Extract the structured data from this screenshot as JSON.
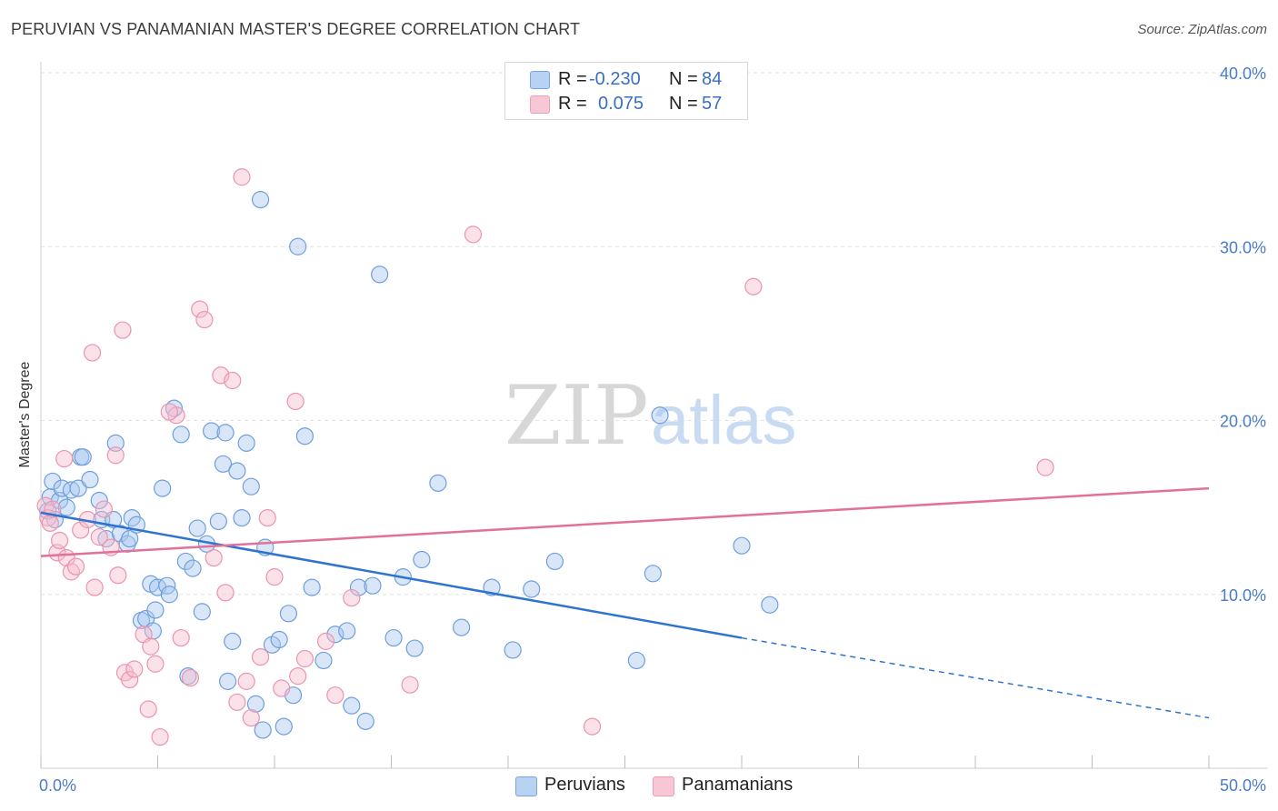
{
  "title": "PERUVIAN VS PANAMANIAN MASTER'S DEGREE CORRELATION CHART",
  "source": "Source: ZipAtlas.com",
  "watermark": {
    "zip": "ZIP",
    "atlas": "atlas"
  },
  "legend": {
    "rows": [
      {
        "r_label": "R =",
        "r_value": "-0.230",
        "n_label": "N =",
        "n_value": "84"
      },
      {
        "r_label": "R =",
        "r_value": "0.075",
        "n_label": "N =",
        "n_value": "57"
      }
    ]
  },
  "bottom_legend": {
    "series1": "Peruvians",
    "series2": "Panamanians"
  },
  "colors": {
    "peruvian_fill": "#a9c8f0",
    "peruvian_stroke": "#6f9fdc",
    "peruvian_line": "#2f73d0",
    "panamanian_fill": "#f6bccd",
    "panamanian_stroke": "#eb94b0",
    "panamanian_line": "#e2709a",
    "grid": "#e3e3e3",
    "tick_label": "#4a7cc8"
  },
  "chart_data": {
    "type": "scatter",
    "title": "PERUVIAN VS PANAMANIAN MASTER'S DEGREE CORRELATION CHART",
    "xlabel": "",
    "ylabel": "Master's Degree",
    "xlim": [
      0,
      50
    ],
    "ylim": [
      0,
      40
    ],
    "x_tick_labels": [
      "0.0%",
      "50.0%"
    ],
    "y_ticks": [
      10,
      20,
      30,
      40
    ],
    "y_tick_labels": [
      "10.0%",
      "20.0%",
      "30.0%",
      "40.0%"
    ],
    "series": [
      {
        "name": "Peruvians",
        "r": -0.23,
        "n": 84,
        "trend": {
          "x0": 0,
          "y0": 14.7,
          "x1": 30,
          "y1": 7.5,
          "dash_to_x": 50,
          "dash_to_y": 2.9
        },
        "points": [
          [
            0.3,
            14.8
          ],
          [
            0.4,
            15.6
          ],
          [
            0.5,
            16.5
          ],
          [
            0.6,
            14.3
          ],
          [
            0.8,
            15.4
          ],
          [
            0.9,
            16.1
          ],
          [
            1.1,
            15.0
          ],
          [
            1.3,
            16.0
          ],
          [
            1.6,
            16.1
          ],
          [
            1.7,
            17.9
          ],
          [
            1.8,
            17.9
          ],
          [
            2.1,
            16.6
          ],
          [
            2.5,
            15.4
          ],
          [
            2.6,
            14.3
          ],
          [
            2.8,
            13.2
          ],
          [
            3.1,
            14.3
          ],
          [
            3.2,
            18.7
          ],
          [
            3.4,
            13.5
          ],
          [
            3.7,
            12.9
          ],
          [
            3.8,
            13.2
          ],
          [
            3.9,
            14.4
          ],
          [
            4.1,
            14.0
          ],
          [
            4.3,
            8.5
          ],
          [
            4.5,
            8.6
          ],
          [
            4.7,
            10.6
          ],
          [
            4.8,
            7.9
          ],
          [
            5.0,
            10.4
          ],
          [
            5.2,
            16.1
          ],
          [
            5.4,
            10.5
          ],
          [
            5.5,
            10.0
          ],
          [
            5.7,
            20.7
          ],
          [
            6.0,
            19.2
          ],
          [
            6.2,
            11.9
          ],
          [
            6.5,
            11.5
          ],
          [
            6.7,
            13.8
          ],
          [
            6.9,
            9.0
          ],
          [
            7.1,
            12.9
          ],
          [
            7.3,
            19.4
          ],
          [
            7.6,
            14.2
          ],
          [
            7.8,
            17.5
          ],
          [
            7.9,
            19.3
          ],
          [
            8.2,
            7.3
          ],
          [
            8.4,
            17.1
          ],
          [
            8.6,
            14.4
          ],
          [
            8.8,
            18.7
          ],
          [
            9.0,
            16.2
          ],
          [
            9.2,
            3.7
          ],
          [
            9.4,
            32.7
          ],
          [
            9.6,
            12.7
          ],
          [
            9.9,
            7.1
          ],
          [
            10.2,
            7.4
          ],
          [
            10.4,
            2.4
          ],
          [
            10.6,
            8.9
          ],
          [
            10.8,
            4.2
          ],
          [
            11.0,
            30.0
          ],
          [
            11.3,
            19.1
          ],
          [
            11.6,
            10.4
          ],
          [
            12.1,
            6.2
          ],
          [
            12.6,
            7.7
          ],
          [
            13.1,
            7.9
          ],
          [
            13.3,
            3.6
          ],
          [
            13.6,
            10.4
          ],
          [
            13.9,
            2.7
          ],
          [
            14.2,
            10.5
          ],
          [
            14.5,
            28.4
          ],
          [
            15.1,
            7.5
          ],
          [
            15.5,
            11.0
          ],
          [
            16.0,
            6.9
          ],
          [
            16.3,
            12.0
          ],
          [
            17.0,
            16.4
          ],
          [
            18.0,
            8.1
          ],
          [
            19.3,
            10.4
          ],
          [
            20.2,
            6.8
          ],
          [
            21.0,
            10.3
          ],
          [
            22.0,
            11.9
          ],
          [
            25.5,
            6.2
          ],
          [
            26.2,
            11.2
          ],
          [
            26.5,
            20.3
          ],
          [
            30.0,
            12.8
          ],
          [
            31.2,
            9.4
          ],
          [
            4.9,
            9.1
          ],
          [
            8.0,
            5.0
          ],
          [
            6.3,
            5.3
          ],
          [
            9.5,
            2.2
          ]
        ]
      },
      {
        "name": "Panamanians",
        "r": 0.075,
        "n": 57,
        "trend": {
          "x0": 0,
          "y0": 12.2,
          "x1": 50,
          "y1": 16.1
        },
        "points": [
          [
            0.2,
            15.1
          ],
          [
            0.3,
            14.4
          ],
          [
            0.4,
            14.1
          ],
          [
            0.5,
            14.9
          ],
          [
            0.7,
            12.4
          ],
          [
            0.8,
            13.1
          ],
          [
            1.0,
            17.8
          ],
          [
            1.1,
            12.1
          ],
          [
            1.3,
            11.3
          ],
          [
            1.5,
            11.6
          ],
          [
            1.7,
            13.7
          ],
          [
            2.0,
            14.3
          ],
          [
            2.2,
            23.9
          ],
          [
            2.3,
            10.4
          ],
          [
            2.5,
            13.3
          ],
          [
            2.7,
            14.9
          ],
          [
            3.0,
            12.7
          ],
          [
            3.2,
            18.0
          ],
          [
            3.3,
            11.1
          ],
          [
            3.5,
            25.2
          ],
          [
            3.6,
            5.5
          ],
          [
            3.8,
            5.1
          ],
          [
            4.0,
            5.7
          ],
          [
            4.4,
            7.7
          ],
          [
            4.6,
            3.4
          ],
          [
            4.7,
            7.0
          ],
          [
            4.9,
            6.0
          ],
          [
            5.1,
            1.8
          ],
          [
            5.8,
            20.3
          ],
          [
            6.0,
            7.5
          ],
          [
            6.4,
            5.2
          ],
          [
            6.8,
            26.4
          ],
          [
            7.0,
            25.8
          ],
          [
            7.4,
            12.1
          ],
          [
            7.7,
            22.6
          ],
          [
            7.9,
            10.1
          ],
          [
            8.2,
            22.3
          ],
          [
            8.4,
            3.8
          ],
          [
            8.6,
            34.0
          ],
          [
            8.8,
            5.0
          ],
          [
            9.0,
            2.9
          ],
          [
            9.4,
            6.4
          ],
          [
            10.0,
            11.0
          ],
          [
            10.3,
            4.6
          ],
          [
            10.9,
            21.1
          ],
          [
            11.0,
            5.3
          ],
          [
            11.3,
            6.3
          ],
          [
            12.2,
            7.3
          ],
          [
            12.6,
            4.2
          ],
          [
            13.3,
            9.8
          ],
          [
            15.8,
            4.8
          ],
          [
            18.5,
            30.7
          ],
          [
            23.6,
            2.4
          ],
          [
            30.5,
            27.7
          ],
          [
            43.0,
            17.3
          ],
          [
            9.7,
            14.4
          ],
          [
            5.5,
            20.5
          ]
        ]
      }
    ]
  }
}
